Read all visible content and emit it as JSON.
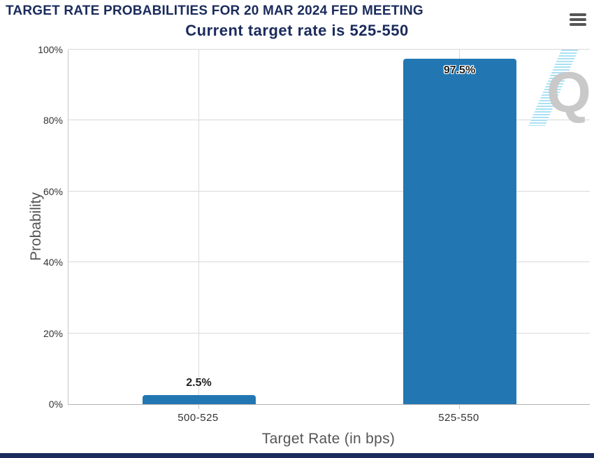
{
  "chart_data": {
    "type": "bar",
    "title": "TARGET RATE PROBABILITIES FOR 20 MAR 2024 FED MEETING",
    "subtitle": "Current target rate is 525-550",
    "categories": [
      "500-525",
      "525-550"
    ],
    "values": [
      2.5,
      97.5
    ],
    "data_labels": [
      "2.5%",
      "97.5%"
    ],
    "xlabel": "Target Rate (in bps)",
    "ylabel": "Probability",
    "ylim": [
      0,
      100
    ],
    "ytick_labels": [
      "0%",
      "20%",
      "40%",
      "60%",
      "80%",
      "100%"
    ],
    "ytick_values": [
      0,
      20,
      40,
      60,
      80,
      100
    ],
    "grid": true,
    "legend": "none",
    "bar_color": "#2277b2",
    "title_color": "#1a2b5c",
    "watermark_letter": "Q",
    "watermark_color": "#c9c9c9",
    "watermark_hatch_color": "#ace1f4"
  },
  "toolbar": {
    "menu_icon": "hamburger-menu-icon"
  }
}
